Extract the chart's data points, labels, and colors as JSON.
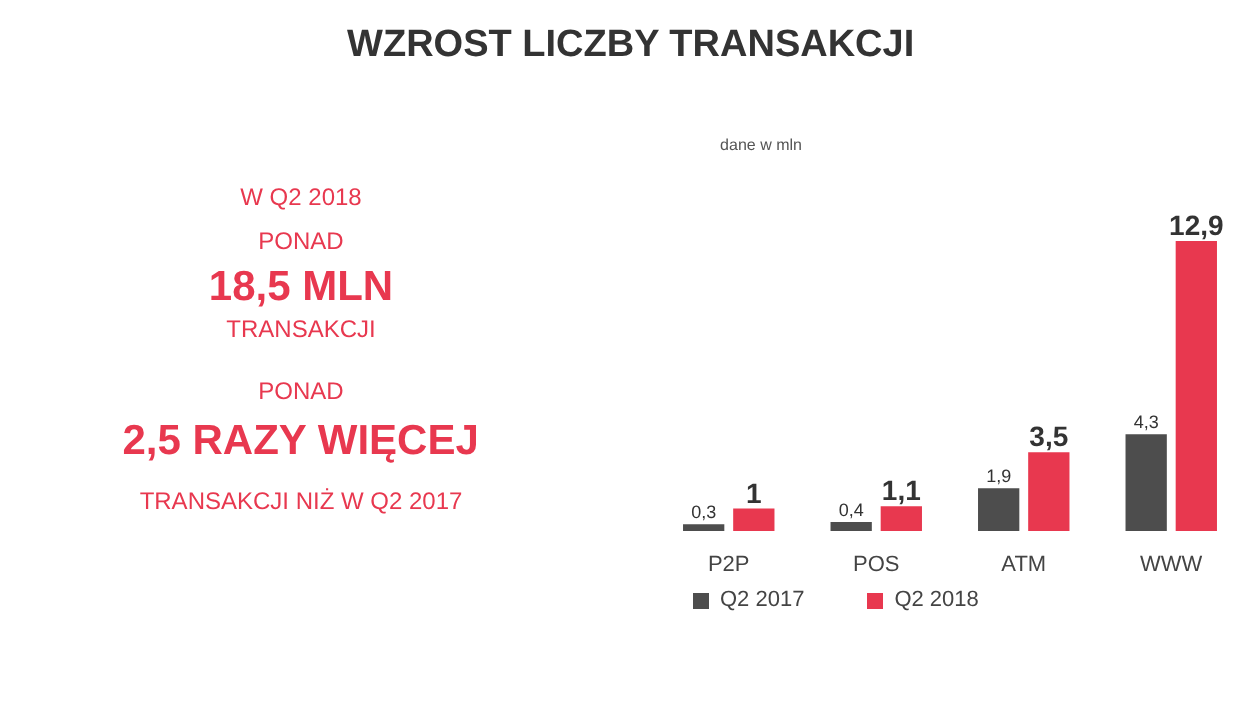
{
  "chart_data": {
    "type": "bar",
    "title": "WZROST LICZBY TRANSAKCJI",
    "categories": [
      "P2P",
      "POS",
      "ATM",
      "WWW"
    ],
    "series": [
      {
        "name": "Q2 2017",
        "color": "#4d4d4d",
        "values": [
          0.3,
          0.4,
          1.9,
          4.3
        ],
        "value_labels": [
          "0,3",
          "0,4",
          "1,9",
          "4,3"
        ]
      },
      {
        "name": "Q2 2018",
        "color": "#e8384f",
        "values": [
          1,
          1.1,
          3.5,
          12.9
        ],
        "value_labels": [
          "1",
          "1,1",
          "3,5",
          "12,9"
        ]
      }
    ],
    "annotations": [
      "W Q2 2018",
      "PONAD",
      "18,5 MLN",
      "TRANSAKCJI",
      "PONAD",
      "2,5 RAZY WIĘCEJ",
      "TRANSAKCJI NIŻ W Q2 2017",
      "dane w mln"
    ],
    "grid": false,
    "legend": "bottom"
  }
}
